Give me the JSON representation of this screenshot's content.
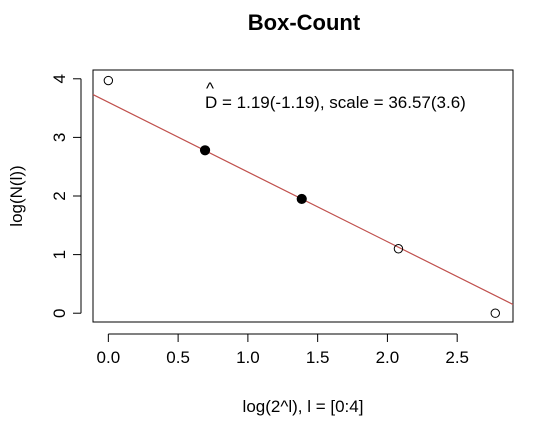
{
  "chart_data": {
    "type": "scatter",
    "title": "Box-Count",
    "xlabel": "log(2^l), l = [0:4]",
    "ylabel": "log(N(l))",
    "xlim": [
      -0.11,
      2.9
    ],
    "ylim": [
      -0.15,
      4.15
    ],
    "xticks": [
      0.0,
      0.5,
      1.0,
      1.5,
      2.0,
      2.5
    ],
    "xtick_labels": [
      "0.0",
      "0.5",
      "1.0",
      "1.5",
      "2.0",
      "2.5"
    ],
    "yticks": [
      0,
      1,
      2,
      3,
      4
    ],
    "ytick_labels": [
      "0",
      "1",
      "2",
      "3",
      "4"
    ],
    "points": [
      {
        "x": 0.0,
        "y": 3.97,
        "filled": false
      },
      {
        "x": 0.693,
        "y": 2.78,
        "filled": true
      },
      {
        "x": 1.386,
        "y": 1.95,
        "filled": true
      },
      {
        "x": 2.079,
        "y": 1.1,
        "filled": false
      },
      {
        "x": 2.773,
        "y": 0.0,
        "filled": false
      }
    ],
    "fit_line": {
      "intercept": 3.6,
      "slope": -1.19,
      "color": "#c0504d"
    },
    "annotation": {
      "hat_symbol": "^",
      "symbol": "D",
      "text": " = 1.19(-1.19), scale = 36.57(3.6)"
    },
    "grid": false
  }
}
